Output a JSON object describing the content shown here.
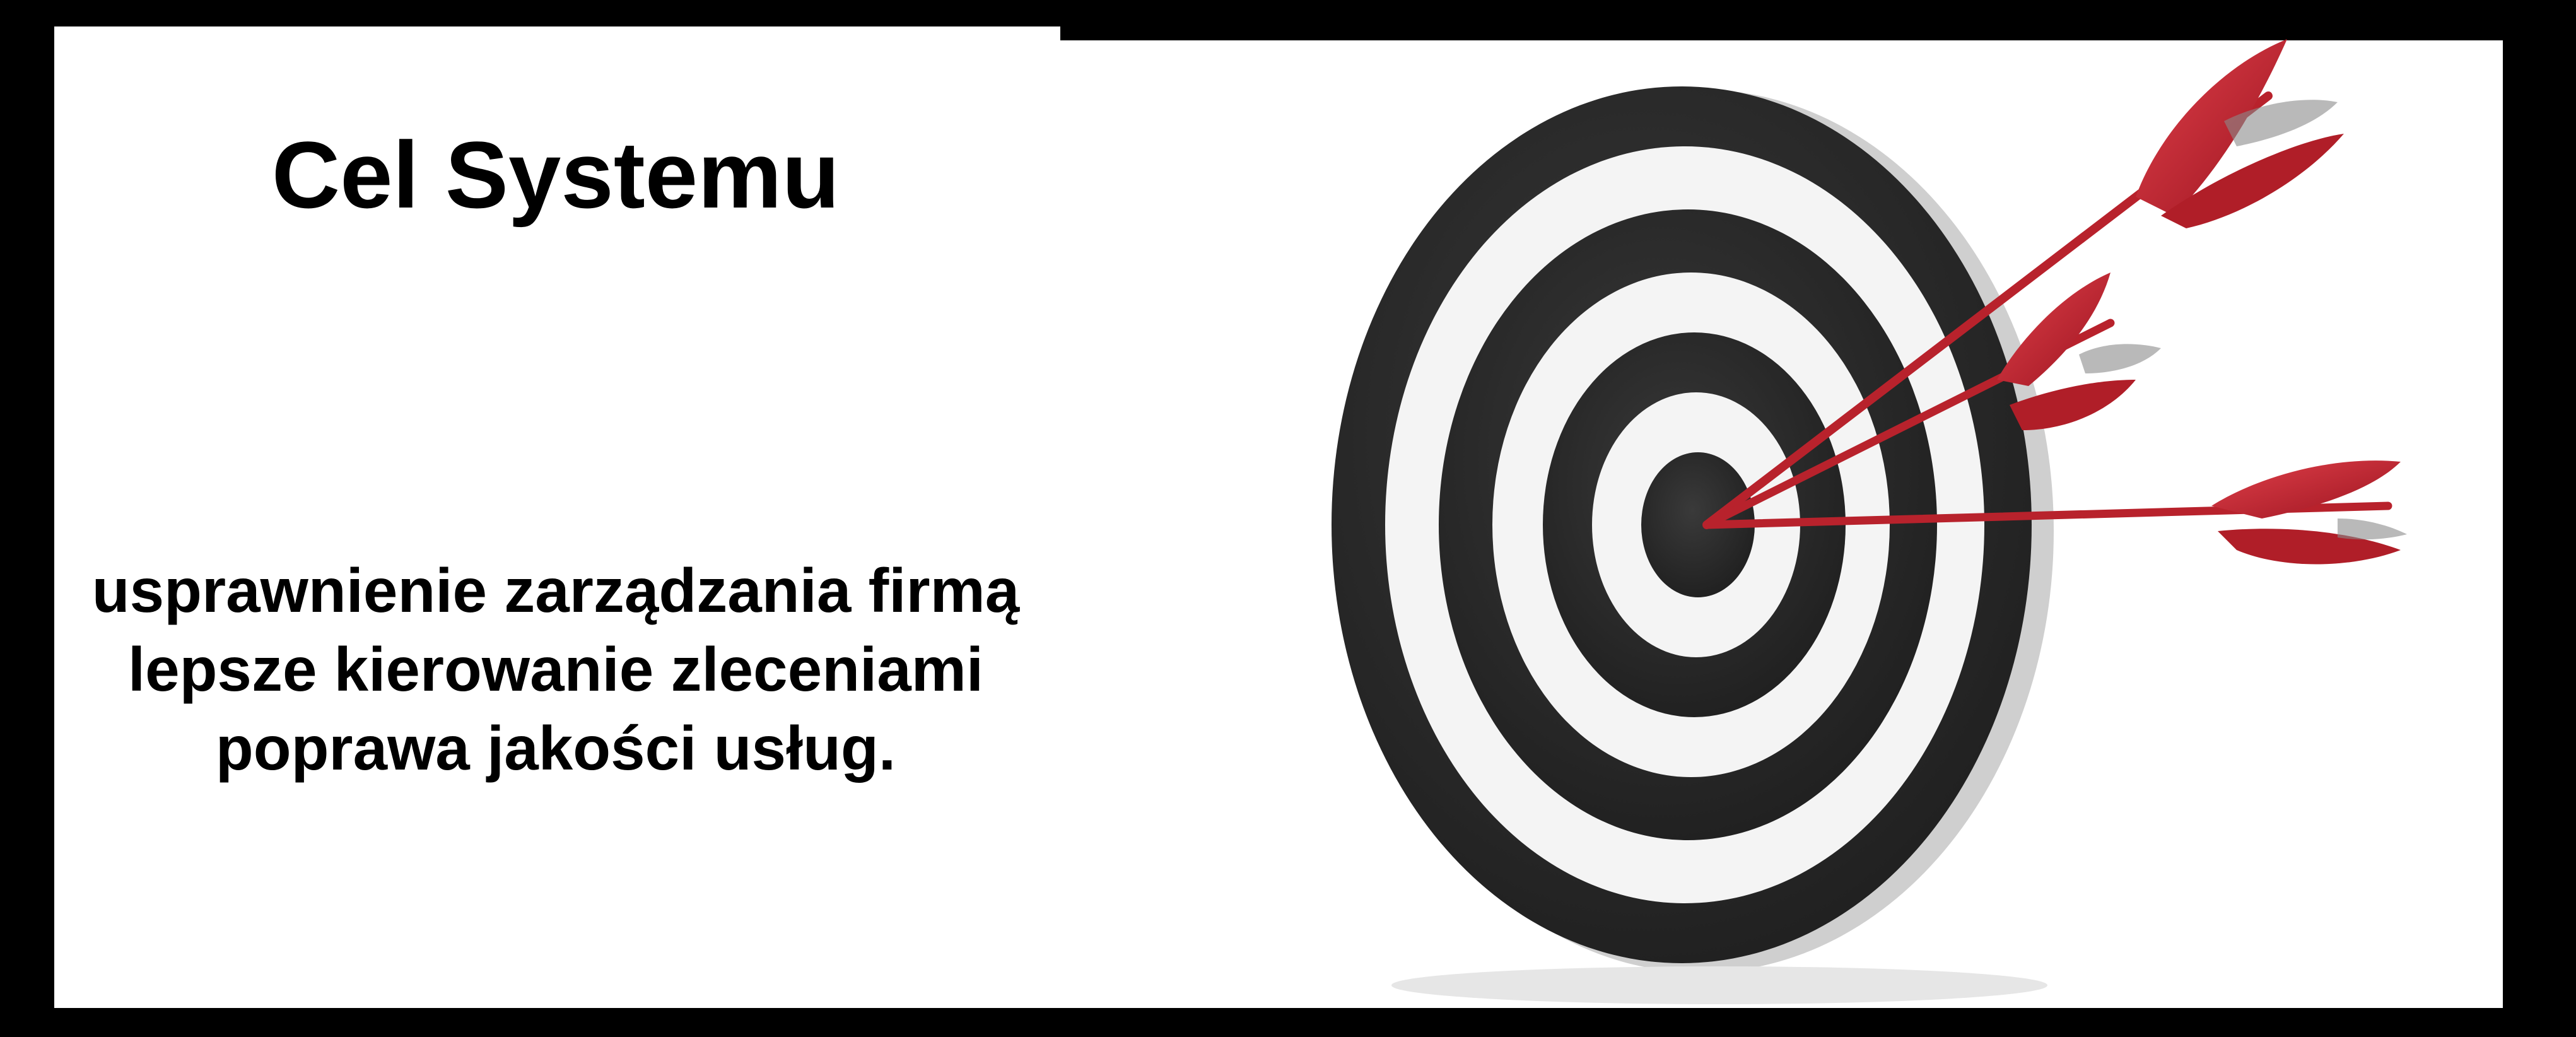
{
  "slide": {
    "title": "Cel Systemu",
    "goals": [
      "usprawnienie zarządzania firmą",
      "lepsze kierowanie zleceniami",
      "poprawa jakości usług."
    ]
  },
  "illustration": {
    "icon": "target-with-arrows-icon",
    "ring_color": "#2b2b2b",
    "arrow_color": "#c8202c"
  }
}
